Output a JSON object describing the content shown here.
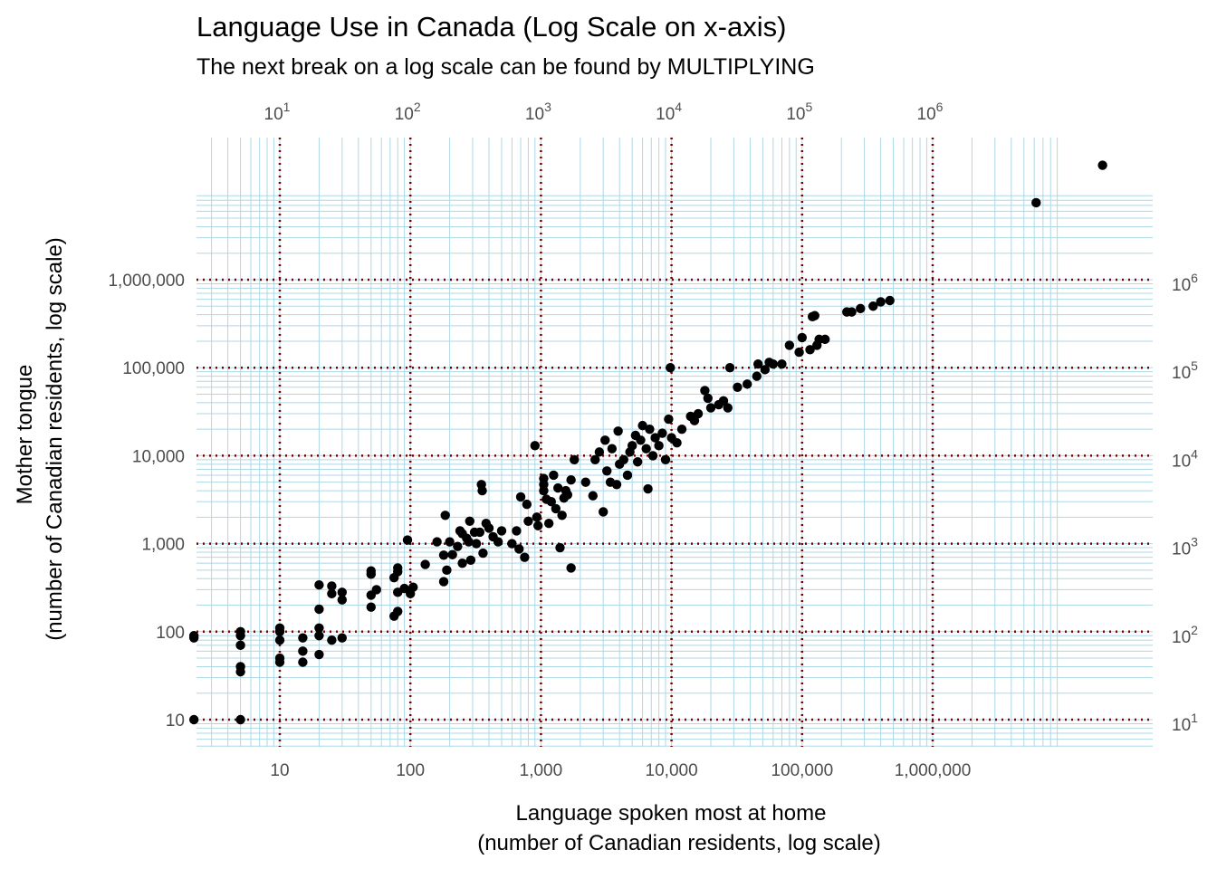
{
  "chart_data": {
    "type": "scatter",
    "title": "Language Use in Canada (Log Scale on x-axis)",
    "subtitle": "The next break on a log scale can be found by MULTIPLYING",
    "xlabel": [
      "Language spoken most at home",
      "(number of Canadian residents, log scale)"
    ],
    "ylabel": [
      "Mother tongue",
      "(number of Canadian residents, log scale)"
    ],
    "x_scale": "log10",
    "y_scale": "log10",
    "xlim": [
      2.2,
      20000000
    ],
    "ylim": [
      5,
      25000000
    ],
    "x_ticks_bottom": [
      {
        "value": 10,
        "label": "10"
      },
      {
        "value": 100,
        "label": "100"
      },
      {
        "value": 1000,
        "label": "1,000"
      },
      {
        "value": 10000,
        "label": "10,000"
      },
      {
        "value": 100000,
        "label": "100,000"
      },
      {
        "value": 1000000,
        "label": "1,000,000"
      }
    ],
    "x_ticks_top": [
      {
        "value": 10,
        "base": "10",
        "exp": "1"
      },
      {
        "value": 100,
        "base": "10",
        "exp": "2"
      },
      {
        "value": 1000,
        "base": "10",
        "exp": "3"
      },
      {
        "value": 10000,
        "base": "10",
        "exp": "4"
      },
      {
        "value": 100000,
        "base": "10",
        "exp": "5"
      },
      {
        "value": 1000000,
        "base": "10",
        "exp": "6"
      }
    ],
    "y_ticks_left": [
      {
        "value": 10,
        "label": "10"
      },
      {
        "value": 100,
        "label": "100"
      },
      {
        "value": 1000,
        "label": "1,000"
      },
      {
        "value": 10000,
        "label": "10,000"
      },
      {
        "value": 100000,
        "label": "100,000"
      },
      {
        "value": 1000000,
        "label": "1,000,000"
      }
    ],
    "y_ticks_right": [
      {
        "value": 10,
        "base": "10",
        "exp": "1"
      },
      {
        "value": 100,
        "base": "10",
        "exp": "2"
      },
      {
        "value": 1000,
        "base": "10",
        "exp": "3"
      },
      {
        "value": 10000,
        "base": "10",
        "exp": "4"
      },
      {
        "value": 100000,
        "base": "10",
        "exp": "5"
      },
      {
        "value": 1000000,
        "base": "10",
        "exp": "6"
      }
    ],
    "grid": {
      "major": true,
      "major_style": "dotted",
      "major_color": "#7a0000",
      "minor": true,
      "minor_color": "#add8e6",
      "minor_x_range": [
        2,
        9000000
      ],
      "minor_y_range": [
        5,
        9000000
      ]
    },
    "point_color": "#000000",
    "points": [
      [
        2.2,
        90
      ],
      [
        2.2,
        85
      ],
      [
        2.2,
        10
      ],
      [
        5,
        100
      ],
      [
        5,
        90
      ],
      [
        5,
        70
      ],
      [
        5,
        40
      ],
      [
        5,
        35
      ],
      [
        5,
        10
      ],
      [
        10,
        110
      ],
      [
        10,
        100
      ],
      [
        10,
        80
      ],
      [
        10,
        50
      ],
      [
        10,
        45
      ],
      [
        15,
        85
      ],
      [
        15,
        60
      ],
      [
        15,
        45
      ],
      [
        20,
        340
      ],
      [
        20,
        180
      ],
      [
        20,
        110
      ],
      [
        20,
        90
      ],
      [
        20,
        55
      ],
      [
        25,
        330
      ],
      [
        25,
        270
      ],
      [
        25,
        80
      ],
      [
        30,
        280
      ],
      [
        30,
        230
      ],
      [
        30,
        85
      ],
      [
        50,
        490
      ],
      [
        50,
        450
      ],
      [
        50,
        260
      ],
      [
        50,
        190
      ],
      [
        55,
        300
      ],
      [
        75,
        410
      ],
      [
        75,
        150
      ],
      [
        80,
        530
      ],
      [
        80,
        480
      ],
      [
        80,
        280
      ],
      [
        80,
        170
      ],
      [
        90,
        310
      ],
      [
        95,
        1100
      ],
      [
        100,
        270
      ],
      [
        105,
        320
      ],
      [
        130,
        580
      ],
      [
        160,
        1050
      ],
      [
        180,
        740
      ],
      [
        180,
        370
      ],
      [
        185,
        2100
      ],
      [
        190,
        500
      ],
      [
        200,
        1050
      ],
      [
        210,
        750
      ],
      [
        230,
        930
      ],
      [
        240,
        1400
      ],
      [
        250,
        1300
      ],
      [
        250,
        600
      ],
      [
        270,
        1150
      ],
      [
        280,
        1050
      ],
      [
        285,
        1800
      ],
      [
        290,
        650
      ],
      [
        310,
        1350
      ],
      [
        320,
        1000
      ],
      [
        350,
        4700
      ],
      [
        355,
        4000
      ],
      [
        340,
        1350
      ],
      [
        360,
        780
      ],
      [
        380,
        1700
      ],
      [
        400,
        1500
      ],
      [
        430,
        1200
      ],
      [
        470,
        1050
      ],
      [
        500,
        1400
      ],
      [
        600,
        1000
      ],
      [
        650,
        1400
      ],
      [
        680,
        870
      ],
      [
        700,
        3400
      ],
      [
        750,
        700
      ],
      [
        780,
        2800
      ],
      [
        800,
        1800
      ],
      [
        900,
        13000
      ],
      [
        930,
        2000
      ],
      [
        950,
        1600
      ],
      [
        1050,
        5500
      ],
      [
        1050,
        4700
      ],
      [
        1050,
        4000
      ],
      [
        1100,
        3200
      ],
      [
        1150,
        1700
      ],
      [
        1200,
        3000
      ],
      [
        1250,
        6000
      ],
      [
        1300,
        2500
      ],
      [
        1350,
        4300
      ],
      [
        1400,
        900
      ],
      [
        1450,
        2100
      ],
      [
        1500,
        3300
      ],
      [
        1550,
        4000
      ],
      [
        1600,
        3600
      ],
      [
        1700,
        530
      ],
      [
        1700,
        5300
      ],
      [
        1800,
        9000
      ],
      [
        2200,
        5000
      ],
      [
        2500,
        3500
      ],
      [
        2600,
        9000
      ],
      [
        2800,
        11000
      ],
      [
        3000,
        2300
      ],
      [
        3100,
        15000
      ],
      [
        3200,
        6700
      ],
      [
        3400,
        5000
      ],
      [
        3500,
        12000
      ],
      [
        3800,
        4700
      ],
      [
        3900,
        19000
      ],
      [
        4000,
        8000
      ],
      [
        4300,
        9000
      ],
      [
        4600,
        6000
      ],
      [
        4800,
        11000
      ],
      [
        5000,
        13000
      ],
      [
        5300,
        17000
      ],
      [
        5500,
        8500
      ],
      [
        5800,
        15000
      ],
      [
        6000,
        22000
      ],
      [
        6400,
        12000
      ],
      [
        6600,
        4200
      ],
      [
        6800,
        20000
      ],
      [
        7200,
        10000
      ],
      [
        7500,
        16000
      ],
      [
        8000,
        13000
      ],
      [
        8500,
        18000
      ],
      [
        9000,
        9000
      ],
      [
        9500,
        26000
      ],
      [
        9800,
        100000
      ],
      [
        10000,
        16000
      ],
      [
        11000,
        14000
      ],
      [
        12000,
        20000
      ],
      [
        14000,
        28000
      ],
      [
        15000,
        25000
      ],
      [
        16000,
        30000
      ],
      [
        18000,
        55000
      ],
      [
        19000,
        45000
      ],
      [
        20000,
        35000
      ],
      [
        23000,
        38000
      ],
      [
        25000,
        42000
      ],
      [
        27000,
        35000
      ],
      [
        28000,
        100000
      ],
      [
        32000,
        60000
      ],
      [
        38000,
        65000
      ],
      [
        45000,
        80000
      ],
      [
        46000,
        110000
      ],
      [
        52000,
        95000
      ],
      [
        56000,
        115000
      ],
      [
        60000,
        110000
      ],
      [
        70000,
        110000
      ],
      [
        80000,
        180000
      ],
      [
        95000,
        150000
      ],
      [
        100000,
        220000
      ],
      [
        115000,
        160000
      ],
      [
        120000,
        380000
      ],
      [
        125000,
        390000
      ],
      [
        130000,
        180000
      ],
      [
        135000,
        210000
      ],
      [
        150000,
        210000
      ],
      [
        220000,
        430000
      ],
      [
        240000,
        430000
      ],
      [
        280000,
        470000
      ],
      [
        350000,
        500000
      ],
      [
        400000,
        560000
      ],
      [
        470000,
        580000
      ],
      [
        6200000,
        7500000
      ],
      [
        20000000,
        20000000
      ]
    ]
  }
}
